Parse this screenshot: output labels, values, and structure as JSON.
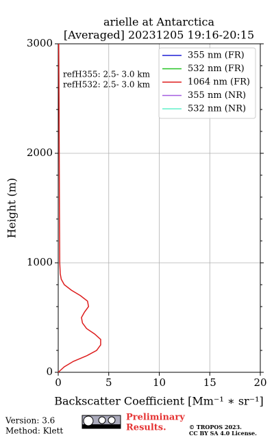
{
  "chart_data": {
    "type": "profile",
    "title": "arielle at Antarctica",
    "subtitle": "[Averaged] 20231205 19:16-20:15",
    "xlabel": "Backscatter Coefficient [Mm⁻¹ ∗ sr⁻¹]",
    "ylabel": "Height (m)",
    "annotations": [
      "refH355:  2.5- 3.0 km",
      "refH532:  2.5- 3.0 km"
    ],
    "y": [
      0,
      50,
      100,
      150,
      200,
      250,
      300,
      350,
      400,
      450,
      500,
      550,
      600,
      650,
      700,
      750,
      800,
      850,
      900,
      1000,
      1500,
      2000,
      2500,
      3000
    ],
    "series": [
      {
        "name": "355 nm (FR)",
        "color": "#1f1fd6",
        "values": [
          null,
          null,
          null,
          null,
          null,
          null,
          null,
          null,
          null,
          null,
          null,
          null,
          null,
          null,
          null,
          null,
          null,
          null,
          null,
          null,
          null,
          null,
          null,
          null
        ]
      },
      {
        "name": "532 nm (FR)",
        "color": "#22c322",
        "values": [
          null,
          null,
          null,
          null,
          null,
          null,
          null,
          null,
          null,
          null,
          null,
          null,
          null,
          null,
          null,
          null,
          null,
          null,
          null,
          null,
          null,
          null,
          null,
          null
        ]
      },
      {
        "name": "1064 nm (FR)",
        "color": "#dd1c1c",
        "values": [
          0.0,
          0.6,
          1.5,
          2.8,
          3.8,
          4.2,
          4.2,
          3.6,
          2.8,
          2.4,
          2.3,
          2.6,
          3.0,
          2.9,
          2.2,
          1.3,
          0.6,
          0.3,
          0.2,
          0.15,
          0.12,
          0.1,
          0.08,
          0.05
        ]
      },
      {
        "name": "355 nm (NR)",
        "color": "#a35ce0",
        "values": [
          null,
          null,
          null,
          null,
          null,
          null,
          null,
          null,
          null,
          null,
          null,
          null,
          null,
          null,
          null,
          null,
          null,
          null,
          null,
          null,
          null,
          null,
          null,
          null
        ]
      },
      {
        "name": "532 nm (NR)",
        "color": "#5ef0c8",
        "values": [
          null,
          null,
          null,
          null,
          null,
          null,
          null,
          null,
          null,
          null,
          null,
          null,
          null,
          null,
          null,
          null,
          null,
          null,
          null,
          null,
          null,
          null,
          null,
          null
        ]
      }
    ],
    "xlim": [
      0,
      20
    ],
    "xticks": [
      0,
      5,
      10,
      15,
      20
    ],
    "ylim": [
      0,
      3000
    ],
    "yticks": [
      0,
      1000,
      2000,
      3000
    ],
    "yminorticks": [
      200,
      400,
      600,
      800,
      1200,
      1400,
      1600,
      1800,
      2200,
      2400,
      2600,
      2800
    ],
    "grid": true,
    "legend": "upper right"
  },
  "footer": {
    "version": "Version: 3.6",
    "method": "Method: Klett",
    "preliminary": [
      "Preliminary",
      "Results."
    ],
    "copyright": [
      "© TROPOS 2023.",
      "CC BY SA 4.0 License."
    ]
  }
}
